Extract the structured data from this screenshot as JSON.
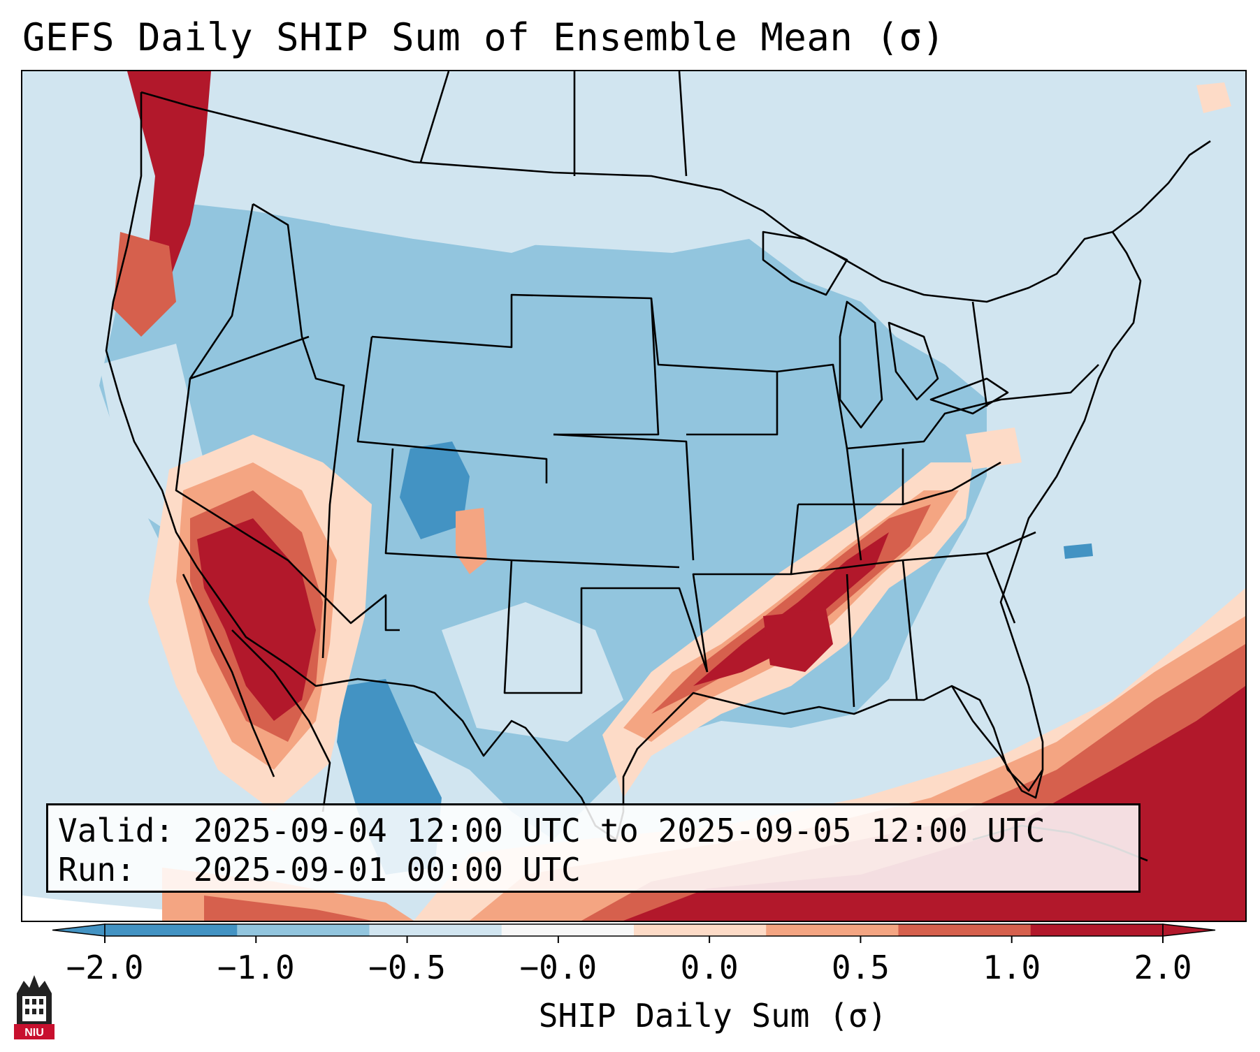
{
  "title": "GEFS Daily SHIP Sum of Ensemble Mean (σ)",
  "info": {
    "valid_label": "Valid:",
    "valid_value": "2025-09-04 12:00 UTC to 2025-09-05 12:00 UTC",
    "run_label": "Run:",
    "run_value": "2025-09-01 00:00 UTC"
  },
  "colorbar": {
    "label": "SHIP Daily Sum (σ)",
    "ticks": [
      "−2.0",
      "−1.0",
      "−0.5",
      "−0.0",
      "0.0",
      "0.5",
      "1.0",
      "2.0"
    ],
    "bins": [
      {
        "color": "#4393c3"
      },
      {
        "color": "#92c5de"
      },
      {
        "color": "#d1e5f0"
      },
      {
        "color": "#f7f7f7"
      },
      {
        "color": "#fddbc7"
      },
      {
        "color": "#f4a582"
      },
      {
        "color": "#d6604d"
      },
      {
        "color": "#b2182b"
      }
    ],
    "extend": "both"
  },
  "logo_text": "NIU",
  "map": {
    "projection": "conic",
    "region": "Continental United States",
    "colors": {
      "ocean_low": "#d1e5f0",
      "land_low": "#92c5de",
      "land_very_low": "#4393c3",
      "high_light": "#fddbc7",
      "high_mid": "#f4a582",
      "high_strong": "#d6604d",
      "high_max": "#b2182b",
      "borders": "#000000"
    }
  }
}
